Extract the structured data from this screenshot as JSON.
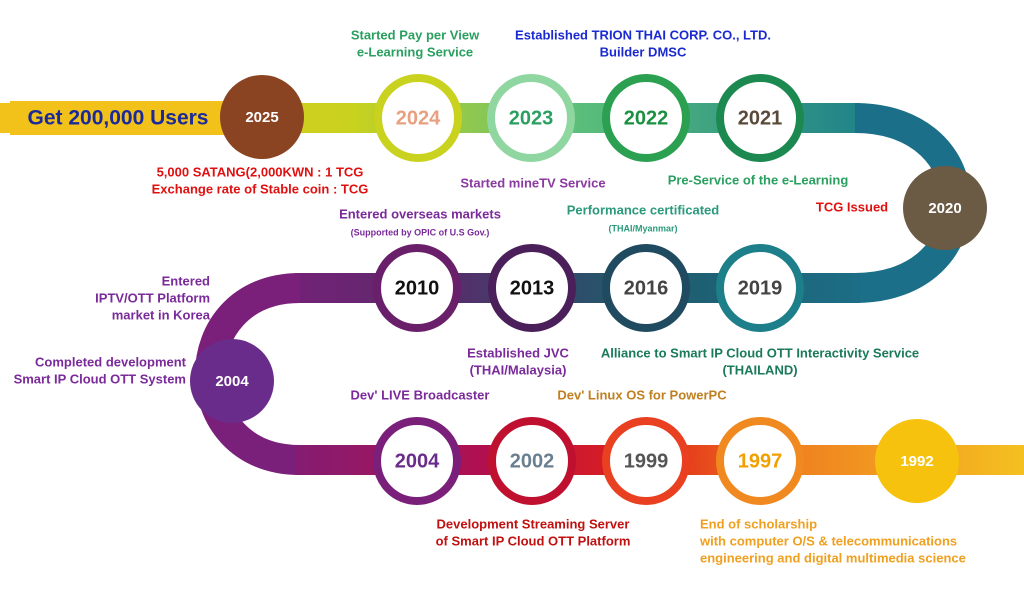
{
  "goal": "Get 200,000 Users",
  "milestones": [
    "2025",
    "2024",
    "2023",
    "2022",
    "2021",
    "2020",
    "2019",
    "2016",
    "2013",
    "2010",
    "2004",
    "2004",
    "2002",
    "1999",
    "1997",
    "1992"
  ],
  "notes": [
    {
      "lines": [
        "Started Pay per View",
        "e-Learning Service"
      ]
    },
    {
      "lines": [
        "Established TRION THAI CORP. CO., LTD.",
        "Builder DMSC"
      ]
    },
    {
      "lines": [
        "5,000 SATANG(2,000KWN : 1 TCG",
        "Exchange rate of Stable coin : TCG"
      ]
    },
    {
      "lines": [
        "Started mineTV Service"
      ]
    },
    {
      "lines": [
        "Pre-Service of the e-Learning"
      ]
    },
    {
      "lines": [
        "TCG Issued"
      ]
    },
    {
      "lines": [
        "Entered overseas markets",
        "(Supported by OPIC of U.S Gov.)"
      ]
    },
    {
      "lines": [
        "Performance certificated",
        "(THAI/Myanmar)"
      ]
    },
    {
      "lines": [
        "Entered",
        "IPTV/OTT Platform",
        "market in Korea"
      ]
    },
    {
      "lines": [
        "Completed development",
        "Smart IP Cloud OTT System"
      ]
    },
    {
      "lines": [
        "Established JVC",
        "(THAI/Malaysia)"
      ]
    },
    {
      "lines": [
        "Alliance to Smart IP Cloud OTT Interactivity Service",
        "(THAILAND)"
      ]
    },
    {
      "lines": [
        "Dev' LIVE Broadcaster"
      ]
    },
    {
      "lines": [
        "Dev' Linux OS for PowerPC"
      ]
    },
    {
      "lines": [
        "Development Streaming Server",
        "of Smart IP Cloud OTT Platform"
      ]
    },
    {
      "lines": [
        "End of scholarship",
        "with computer O/S & telecommunications",
        "engineering and digital multimedia science"
      ]
    }
  ]
}
